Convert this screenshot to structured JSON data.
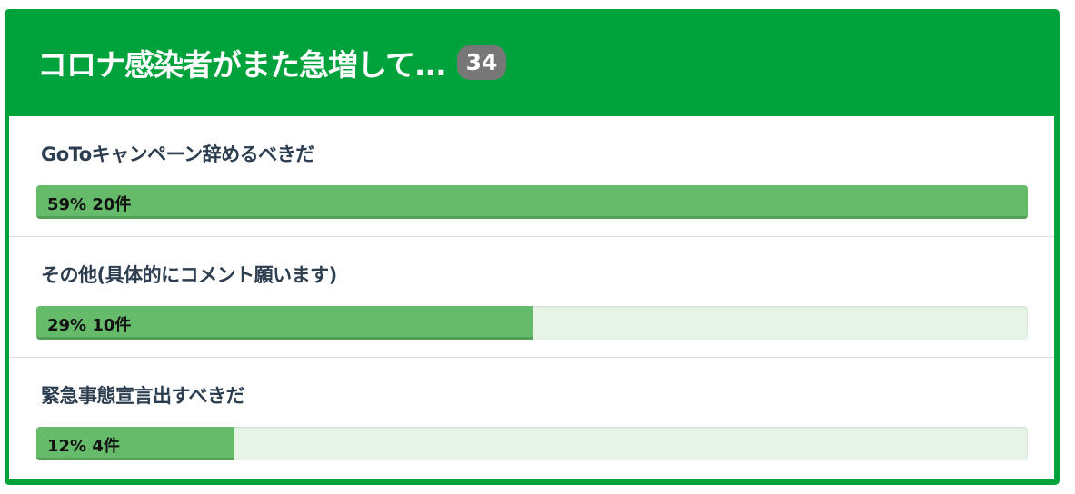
{
  "poll": {
    "title": "コロナ感染者がまた急増して...",
    "total_votes": "34",
    "colors": {
      "header": "#00a23c",
      "bar_fill": "#66bb6a",
      "bar_track": "#e6f4e6"
    },
    "options": [
      {
        "label": "GoToキャンペーン辞めるべきだ",
        "percent": 59,
        "count": 20,
        "result_text": "59% 20件"
      },
      {
        "label": "その他(具体的にコメント願います)",
        "percent": 29,
        "count": 10,
        "result_text": "29% 10件"
      },
      {
        "label": "緊急事態宣言出すべきだ",
        "percent": 12,
        "count": 4,
        "result_text": "12% 4件"
      }
    ]
  }
}
